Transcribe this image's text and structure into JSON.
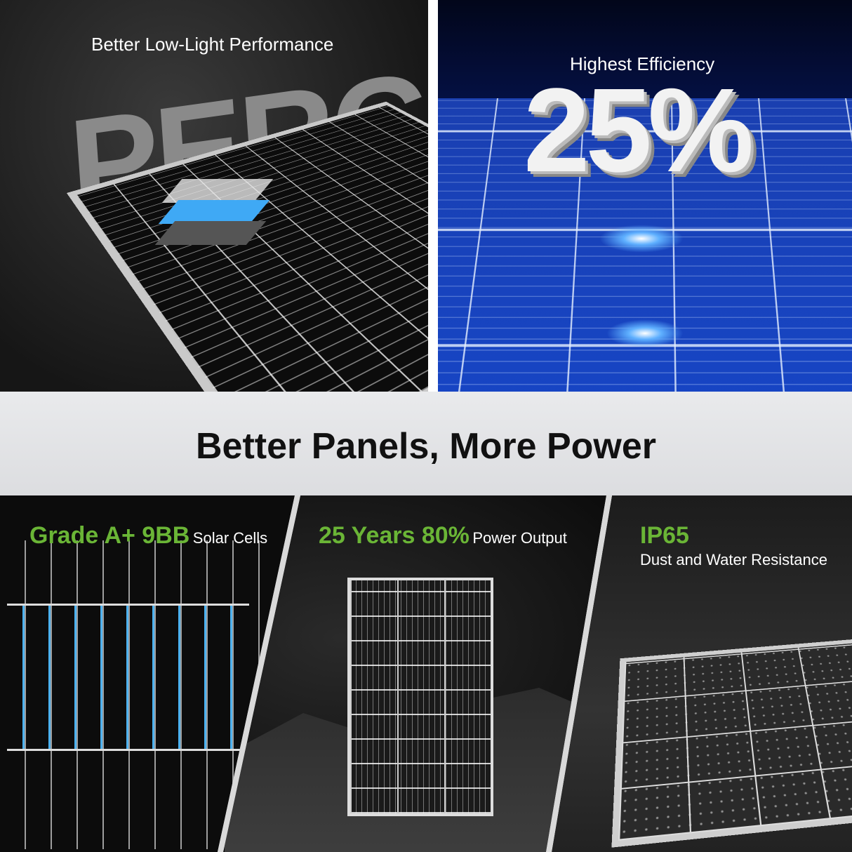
{
  "top_left": {
    "caption": "Better Low-Light Performance",
    "big_text": "PERC"
  },
  "top_right": {
    "caption": "Highest Efficiency",
    "big_text": "25%"
  },
  "headline": "Better Panels, More Power",
  "features": [
    {
      "highlight": "Grade A+ 9BB",
      "text": "Solar Cells"
    },
    {
      "highlight": "25 Years 80%",
      "text": "Power Output"
    },
    {
      "highlight": "IP65",
      "text": "Dust and Water Resistance"
    }
  ],
  "colors": {
    "accent_green": "#6ab536",
    "band": "#e2e3e5",
    "dark": "#111111",
    "blue": "#0b2f9a"
  }
}
